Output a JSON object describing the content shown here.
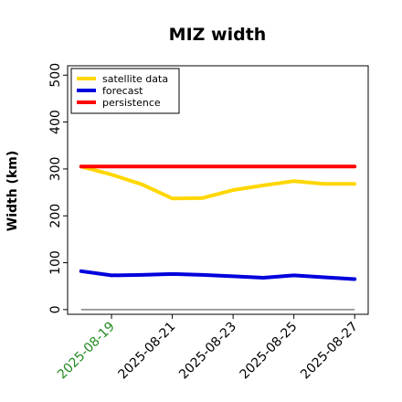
{
  "chart_data": {
    "type": "line",
    "title": "MIZ width",
    "xlabel": "",
    "ylabel": "Width (km)",
    "ylim": [
      -10,
      520
    ],
    "yticks": [
      0,
      100,
      200,
      300,
      400,
      500
    ],
    "x": [
      "2025-08-18",
      "2025-08-19",
      "2025-08-20",
      "2025-08-21",
      "2025-08-22",
      "2025-08-23",
      "2025-08-24",
      "2025-08-25",
      "2025-08-26",
      "2025-08-27"
    ],
    "xticks": [
      "2025-08-19",
      "2025-08-21",
      "2025-08-23",
      "2025-08-25",
      "2025-08-27"
    ],
    "xtick_colors": [
      "#228b22",
      "#000000",
      "#000000",
      "#000000",
      "#000000"
    ],
    "grid": false,
    "legend_position": "top-left",
    "series": [
      {
        "name": "satellite data",
        "color": "#ffd700",
        "values": [
          305,
          288,
          267,
          237,
          238,
          255,
          265,
          274,
          268,
          268
        ]
      },
      {
        "name": "forecast",
        "color": "#0000dd",
        "values": [
          82,
          73,
          74,
          76,
          74,
          71,
          68,
          73,
          69,
          65
        ]
      },
      {
        "name": "persistence",
        "color": "#ff0000",
        "values": [
          305,
          305,
          305,
          305,
          305,
          305,
          305,
          305,
          305,
          305
        ]
      }
    ],
    "baseline": {
      "value": 0,
      "color": "#808080"
    }
  }
}
